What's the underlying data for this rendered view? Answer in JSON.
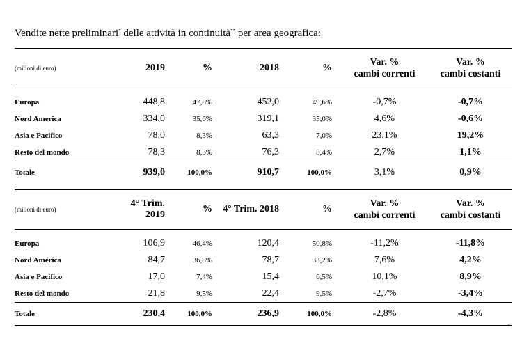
{
  "title": {
    "part1": "Vendite nette preliminari",
    "sup1": "*",
    "part2": " delle attività in continuità",
    "sup2": "**",
    "part3": " per area geografica:"
  },
  "tables": [
    {
      "unit": "(milioni di euro)",
      "headers": [
        "2019",
        "%",
        "2018",
        "%",
        "Var. %",
        "cambi correnti",
        "Var. %",
        "cambi costanti"
      ],
      "rows": [
        {
          "region": "Europa",
          "v1": "448,8",
          "p1": "47,8%",
          "v2": "452,0",
          "p2": "49,6%",
          "var_cur": "-0,7%",
          "var_const": "-0,7%"
        },
        {
          "region": "Nord America",
          "v1": "334,0",
          "p1": "35,6%",
          "v2": "319,1",
          "p2": "35,0%",
          "var_cur": "4,6%",
          "var_const": "-0,6%"
        },
        {
          "region": "Asia e Pacifico",
          "v1": "78,0",
          "p1": "8,3%",
          "v2": "63,3",
          "p2": "7,0%",
          "var_cur": "23,1%",
          "var_const": "19,2%"
        },
        {
          "region": "Resto del mondo",
          "v1": "78,3",
          "p1": "8,3%",
          "v2": "76,3",
          "p2": "8,4%",
          "var_cur": "2,7%",
          "var_const": "1,1%"
        }
      ],
      "total": {
        "region": "Totale",
        "v1": "939,0",
        "p1": "100,0%",
        "v2": "910,7",
        "p2": "100,0%",
        "var_cur": "3,1%",
        "var_const": "0,9%"
      }
    },
    {
      "unit": "(milioni di euro)",
      "headers": [
        "4° Trim. 2019",
        "%",
        "4° Trim. 2018",
        "%",
        "Var. %",
        "cambi correnti",
        "Var. %",
        "cambi costanti"
      ],
      "rows": [
        {
          "region": "Europa",
          "v1": "106,9",
          "p1": "46,4%",
          "v2": "120,4",
          "p2": "50,8%",
          "var_cur": "-11,2%",
          "var_const": "-11,8%"
        },
        {
          "region": "Nord America",
          "v1": "84,7",
          "p1": "36,8%",
          "v2": "78,7",
          "p2": "33,2%",
          "var_cur": "7,6%",
          "var_const": "4,2%"
        },
        {
          "region": "Asia e Pacifico",
          "v1": "17,0",
          "p1": "7,4%",
          "v2": "15,4",
          "p2": "6,5%",
          "var_cur": "10,1%",
          "var_const": "8,9%"
        },
        {
          "region": "Resto del mondo",
          "v1": "21,8",
          "p1": "9,5%",
          "v2": "22,4",
          "p2": "9,5%",
          "var_cur": "-2,7%",
          "var_const": "-3,4%"
        }
      ],
      "total": {
        "region": "Totale",
        "v1": "230,4",
        "p1": "100,0%",
        "v2": "236,9",
        "p2": "100,0%",
        "var_cur": "-2,8%",
        "var_const": "-4,3%"
      }
    }
  ],
  "footer_mark": "-"
}
